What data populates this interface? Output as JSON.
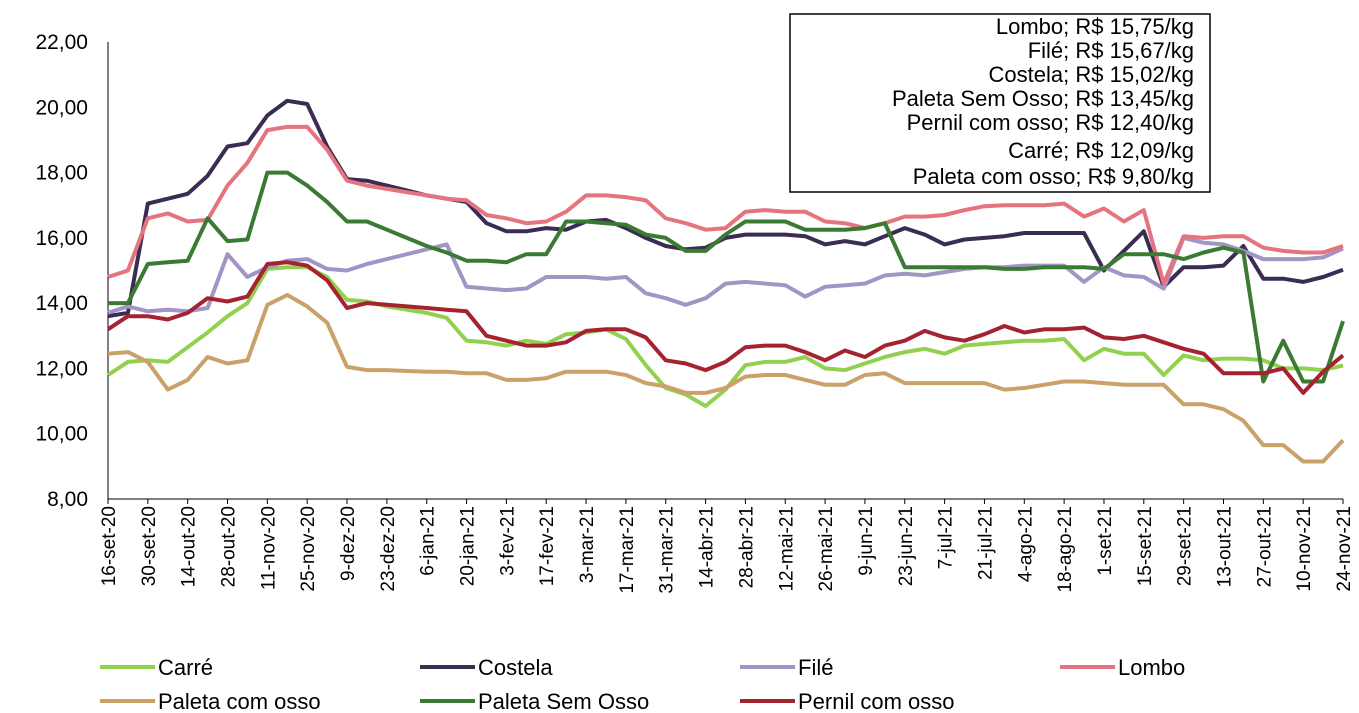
{
  "chart_data": {
    "type": "line",
    "annotations": [
      "Lombo; R$ 15,75/kg",
      "Filé; R$ 15,67/kg",
      "Costela; R$ 15,02/kg",
      "Paleta Sem Osso; R$ 13,45/kg",
      "Pernil com osso; R$ 12,40/kg",
      "Carré; R$ 12,09/kg",
      "Paleta com osso; R$ 9,80/kg"
    ],
    "categories": [
      "16-set-20",
      null,
      "30-set-20",
      null,
      "14-out-20",
      null,
      "28-out-20",
      null,
      "11-nov-20",
      null,
      "25-nov-20",
      null,
      "9-dez-20",
      null,
      "23-dez-20",
      null,
      "6-jan-21",
      null,
      "20-jan-21",
      null,
      "3-fev-21",
      null,
      "17-fev-21",
      null,
      "3-mar-21",
      null,
      "17-mar-21",
      null,
      "31-mar-21",
      null,
      "14-abr-21",
      null,
      "28-abr-21",
      null,
      "12-mai-21",
      null,
      "26-mai-21",
      null,
      "9-jun-21",
      null,
      "23-jun-21",
      null,
      "7-jul-21",
      null,
      "21-jul-21",
      null,
      "4-ago-21",
      null,
      "18-ago-21",
      null,
      "1-set-21",
      null,
      "15-set-21",
      null,
      "29-set-21",
      null,
      "13-out-21",
      null,
      "27-out-21",
      null,
      "10-nov-21",
      null,
      "24-nov-21"
    ],
    "series": [
      {
        "name": "Carré",
        "color": "#92d050",
        "values": [
          11.8,
          12.2,
          12.25,
          12.2,
          12.65,
          13.1,
          13.6,
          14.0,
          15.05,
          15.1,
          15.1,
          14.8,
          14.1,
          14.05,
          13.9,
          13.8,
          13.7,
          13.55,
          12.85,
          12.8,
          12.7,
          12.85,
          12.75,
          13.05,
          13.1,
          13.2,
          12.9,
          12.1,
          11.4,
          11.2,
          10.85,
          11.35,
          12.1,
          12.2,
          12.2,
          12.35,
          12.0,
          11.95,
          12.15,
          12.35,
          12.5,
          12.6,
          12.45,
          12.7,
          12.75,
          12.8,
          12.85,
          12.85,
          12.9,
          12.25,
          12.6,
          12.45,
          12.45,
          11.8,
          12.4,
          12.25,
          12.3,
          12.3,
          12.25,
          12.0,
          12.0,
          11.95,
          12.09
        ]
      },
      {
        "name": "Costela",
        "color": "#3a2c52",
        "values": [
          13.6,
          13.7,
          17.05,
          17.2,
          17.35,
          17.9,
          18.8,
          18.9,
          19.75,
          20.2,
          20.1,
          18.8,
          17.8,
          17.75,
          17.6,
          17.45,
          17.3,
          17.2,
          17.1,
          16.45,
          16.2,
          16.2,
          16.3,
          16.25,
          16.5,
          16.55,
          16.3,
          16.0,
          15.75,
          15.65,
          15.7,
          16.0,
          16.1,
          16.1,
          16.1,
          16.05,
          15.8,
          15.9,
          15.8,
          16.05,
          16.3,
          16.1,
          15.8,
          15.95,
          16.0,
          16.05,
          16.15,
          16.15,
          16.15,
          16.15,
          15.0,
          15.6,
          16.2,
          14.5,
          15.1,
          15.1,
          15.15,
          15.75,
          14.75,
          14.75,
          14.65,
          14.8,
          15.02
        ]
      },
      {
        "name": "Filé",
        "color": "#a394c6",
        "values": [
          13.7,
          13.9,
          13.75,
          13.8,
          13.75,
          13.85,
          15.5,
          14.8,
          15.1,
          15.3,
          15.35,
          15.05,
          15.0,
          15.2,
          15.35,
          15.5,
          15.65,
          15.8,
          14.5,
          14.45,
          14.4,
          14.45,
          14.8,
          14.8,
          14.8,
          14.75,
          14.8,
          14.3,
          14.15,
          13.95,
          14.15,
          14.6,
          14.65,
          14.6,
          14.55,
          14.2,
          14.5,
          14.55,
          14.6,
          14.85,
          14.9,
          14.85,
          14.95,
          15.05,
          15.1,
          15.1,
          15.15,
          15.15,
          15.15,
          14.65,
          15.1,
          14.85,
          14.8,
          14.45,
          16.0,
          15.85,
          15.8,
          15.6,
          15.35,
          15.35,
          15.35,
          15.4,
          15.67
        ]
      },
      {
        "name": "Lombo",
        "color": "#e5747f",
        "values": [
          14.8,
          15.0,
          16.6,
          16.75,
          16.5,
          16.55,
          17.6,
          18.3,
          19.3,
          19.4,
          19.4,
          18.7,
          17.75,
          17.6,
          17.5,
          17.4,
          17.3,
          17.2,
          17.15,
          16.7,
          16.6,
          16.45,
          16.5,
          16.8,
          17.3,
          17.3,
          17.25,
          17.15,
          16.6,
          16.45,
          16.25,
          16.3,
          16.8,
          16.85,
          16.8,
          16.8,
          16.5,
          16.45,
          16.3,
          16.45,
          16.65,
          16.65,
          16.7,
          16.85,
          16.97,
          17.0,
          17.0,
          17.0,
          17.05,
          16.65,
          16.9,
          16.5,
          16.85,
          14.6,
          16.05,
          16.0,
          16.05,
          16.05,
          15.7,
          15.6,
          15.55,
          15.55,
          15.75
        ]
      },
      {
        "name": "Paleta com osso",
        "color": "#c9a169",
        "values": [
          12.45,
          12.5,
          12.2,
          11.35,
          11.65,
          12.35,
          12.15,
          12.25,
          13.95,
          14.25,
          13.9,
          13.4,
          12.05,
          11.95,
          11.95,
          11.92,
          11.9,
          11.9,
          11.85,
          11.85,
          11.65,
          11.65,
          11.7,
          11.9,
          11.9,
          11.9,
          11.8,
          11.55,
          11.45,
          11.25,
          11.25,
          11.4,
          11.75,
          11.8,
          11.8,
          11.65,
          11.5,
          11.5,
          11.8,
          11.85,
          11.55,
          11.55,
          11.55,
          11.55,
          11.55,
          11.35,
          11.4,
          11.5,
          11.6,
          11.6,
          11.55,
          11.5,
          11.5,
          11.5,
          10.9,
          10.9,
          10.75,
          10.4,
          9.65,
          9.65,
          9.15,
          9.15,
          9.8
        ]
      },
      {
        "name": "Paleta Sem Osso",
        "color": "#3b7a32",
        "values": [
          14.0,
          14.0,
          15.2,
          15.25,
          15.3,
          16.6,
          15.9,
          15.95,
          18.0,
          18.0,
          17.6,
          17.1,
          16.5,
          16.5,
          16.25,
          16.0,
          15.75,
          15.55,
          15.3,
          15.3,
          15.25,
          15.5,
          15.5,
          16.5,
          16.5,
          16.45,
          16.4,
          16.1,
          16.0,
          15.6,
          15.6,
          16.1,
          16.5,
          16.5,
          16.5,
          16.25,
          16.25,
          16.25,
          16.3,
          16.45,
          15.1,
          15.1,
          15.1,
          15.1,
          15.1,
          15.05,
          15.05,
          15.1,
          15.1,
          15.1,
          15.05,
          15.5,
          15.5,
          15.5,
          15.35,
          15.55,
          15.7,
          15.55,
          11.6,
          12.85,
          11.6,
          11.6,
          13.45
        ]
      },
      {
        "name": "Pernil com osso",
        "color": "#a52231",
        "values": [
          13.2,
          13.6,
          13.6,
          13.5,
          13.7,
          14.15,
          14.05,
          14.2,
          15.2,
          15.25,
          15.15,
          14.7,
          13.85,
          14.0,
          13.95,
          13.9,
          13.85,
          13.8,
          13.75,
          13.0,
          12.85,
          12.7,
          12.7,
          12.8,
          13.15,
          13.2,
          13.2,
          12.95,
          12.25,
          12.15,
          11.95,
          12.2,
          12.65,
          12.7,
          12.7,
          12.5,
          12.25,
          12.55,
          12.35,
          12.7,
          12.85,
          13.15,
          12.95,
          12.85,
          13.05,
          13.3,
          13.1,
          13.2,
          13.2,
          13.25,
          12.95,
          12.9,
          13.0,
          12.8,
          12.6,
          12.45,
          11.85,
          11.85,
          11.85,
          12.0,
          11.25,
          11.9,
          12.4
        ]
      }
    ],
    "ylim": [
      8,
      22
    ],
    "yticks": [
      {
        "value": 8,
        "label": "8,00"
      },
      {
        "value": 10,
        "label": "10,00"
      },
      {
        "value": 12,
        "label": "12,00"
      },
      {
        "value": 14,
        "label": "14,00"
      },
      {
        "value": 16,
        "label": "16,00"
      },
      {
        "value": 18,
        "label": "18,00"
      },
      {
        "value": 20,
        "label": "20,00"
      },
      {
        "value": 22,
        "label": "22,00"
      }
    ],
    "grid": false,
    "legend": "bottom"
  }
}
